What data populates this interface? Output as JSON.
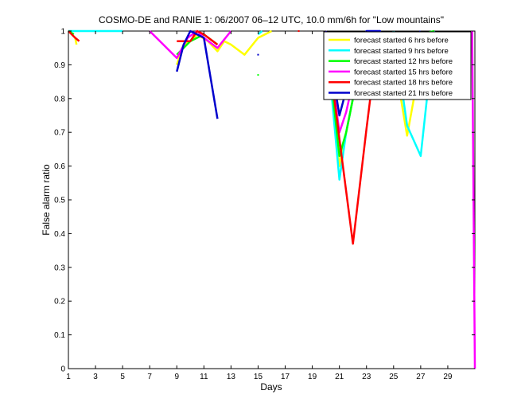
{
  "chart_data": {
    "type": "line",
    "title": "COSMO-DE and RANIE 1: 06/2007 06–12 UTC, 10.0 mm/6h for \"Low mountains\"",
    "xlabel": "Days",
    "ylabel": "False alarm ratio",
    "xlim": [
      1,
      31
    ],
    "ylim": [
      0,
      1
    ],
    "xticks": [
      1,
      3,
      5,
      7,
      9,
      11,
      13,
      15,
      17,
      19,
      21,
      23,
      25,
      27,
      29
    ],
    "xtick_labels": [
      "1",
      "3",
      "5",
      "7",
      "9",
      "11",
      "13",
      "15",
      "17",
      "19",
      "21",
      "23",
      "25",
      "27",
      "29"
    ],
    "yticks": [
      0,
      0.1,
      0.2,
      0.3,
      0.4,
      0.5,
      0.6,
      0.7,
      0.8,
      0.9,
      1
    ],
    "ytick_labels": [
      "0",
      "0.1",
      "0.2",
      "0.3",
      "0.4",
      "0.5",
      "0.6",
      "0.7",
      "0.8",
      "0.9",
      "1"
    ],
    "grid": false,
    "legend_position": "top-right",
    "series": [
      {
        "name": "forecast started 6 hrs before",
        "color": "#ffff00",
        "segments": [
          [
            [
              1,
              1
            ],
            [
              1.5,
              0.98
            ],
            [
              1.6,
              0.96
            ]
          ],
          [
            [
              9,
              0.9
            ],
            [
              9.5,
              0.96
            ],
            [
              10,
              0.97
            ],
            [
              10.5,
              0.99
            ],
            [
              11.3,
              0.97
            ],
            [
              12,
              0.94
            ],
            [
              12.5,
              0.97
            ],
            [
              13,
              0.96
            ],
            [
              14,
              0.93
            ],
            [
              15,
              0.98
            ],
            [
              15.5,
              0.99
            ],
            [
              16,
              1
            ]
          ],
          [
            [
              20,
              1
            ],
            [
              21,
              0.6
            ],
            [
              21.6,
              0.72
            ],
            [
              22,
              0.8
            ],
            [
              22.6,
              0.83
            ]
          ],
          [
            [
              25,
              0.93
            ],
            [
              26,
              0.69
            ],
            [
              26.5,
              0.8
            ],
            [
              27,
              0.98
            ],
            [
              28,
              1
            ]
          ]
        ]
      },
      {
        "name": "forecast started 9 hrs before",
        "color": "#00ffff",
        "segments": [
          [
            [
              1,
              1
            ],
            [
              5,
              1
            ]
          ],
          [
            [
              15,
              0.99
            ],
            [
              15.3,
              1
            ]
          ],
          [
            [
              20,
              1
            ],
            [
              21,
              0.56
            ],
            [
              21.5,
              0.7
            ],
            [
              22,
              0.8
            ],
            [
              23,
              0.99
            ],
            [
              24,
              1
            ]
          ],
          [
            [
              25,
              1
            ],
            [
              26,
              0.72
            ],
            [
              27,
              0.63
            ],
            [
              28,
              1
            ]
          ]
        ]
      },
      {
        "name": "forecast started 12 hrs before",
        "color": "#00ff00",
        "segments": [
          [
            [
              1,
              1
            ],
            [
              1.4,
              0.99
            ]
          ],
          [
            [
              9,
              0.93
            ],
            [
              10,
              0.97
            ],
            [
              11,
              0.99
            ],
            [
              12,
              0.96
            ]
          ],
          [
            [
              15,
              0.87
            ]
          ],
          [
            [
              20,
              1
            ],
            [
              21,
              0.63
            ],
            [
              21.5,
              0.7
            ],
            [
              22,
              0.8
            ],
            [
              22.5,
              0.83
            ]
          ],
          [
            [
              26,
              0.86
            ],
            [
              26.5,
              0.96
            ],
            [
              27,
              0.99
            ],
            [
              28,
              1
            ]
          ]
        ]
      },
      {
        "name": "forecast started 15 hrs before",
        "color": "#ff00ff",
        "segments": [
          [
            [
              7,
              1
            ],
            [
              9,
              0.92
            ],
            [
              9.8,
              0.98
            ],
            [
              10.5,
              1
            ],
            [
              11,
              0.98
            ],
            [
              12,
              0.95
            ],
            [
              13,
              1
            ]
          ],
          [
            [
              20,
              1
            ],
            [
              21,
              0.7
            ],
            [
              21.5,
              0.76
            ],
            [
              22,
              0.85
            ],
            [
              22.6,
              0.97
            ]
          ],
          [
            [
              25,
              0.92
            ],
            [
              26,
              0.84
            ],
            [
              26.5,
              0.9
            ],
            [
              27,
              0.96
            ]
          ],
          [
            [
              30.8,
              1
            ],
            [
              32,
              0
            ]
          ]
        ]
      },
      {
        "name": "forecast started 18 hrs before",
        "color": "#ff0000",
        "segments": [
          [
            [
              1,
              1
            ],
            [
              1.5,
              0.98
            ],
            [
              1.8,
              0.97
            ]
          ],
          [
            [
              9,
              0.97
            ],
            [
              10,
              0.97
            ],
            [
              10.5,
              1
            ],
            [
              11,
              0.99
            ],
            [
              12,
              0.96
            ]
          ],
          [
            [
              18,
              1
            ]
          ],
          [
            [
              20,
              1
            ],
            [
              21,
              0.68
            ],
            [
              22,
              0.37
            ],
            [
              23,
              0.71
            ],
            [
              23.8,
              0.97
            ]
          ],
          [
            [
              25,
              0.92
            ],
            [
              26,
              0.85
            ],
            [
              27,
              0.97
            ]
          ]
        ]
      },
      {
        "name": "forecast started 21 hrs before",
        "color": "#0000cc",
        "segments": [
          [
            [
              9,
              0.88
            ],
            [
              9.5,
              0.96
            ],
            [
              10,
              1
            ],
            [
              11,
              0.98
            ],
            [
              12,
              0.74
            ]
          ],
          [
            [
              15,
              0.93
            ]
          ],
          [
            [
              20,
              1
            ],
            [
              21,
              0.75
            ],
            [
              22,
              0.9
            ],
            [
              23,
              1
            ],
            [
              24,
              1
            ],
            [
              25,
              0.87
            ],
            [
              26,
              0.94
            ],
            [
              27,
              1
            ]
          ]
        ]
      }
    ]
  }
}
